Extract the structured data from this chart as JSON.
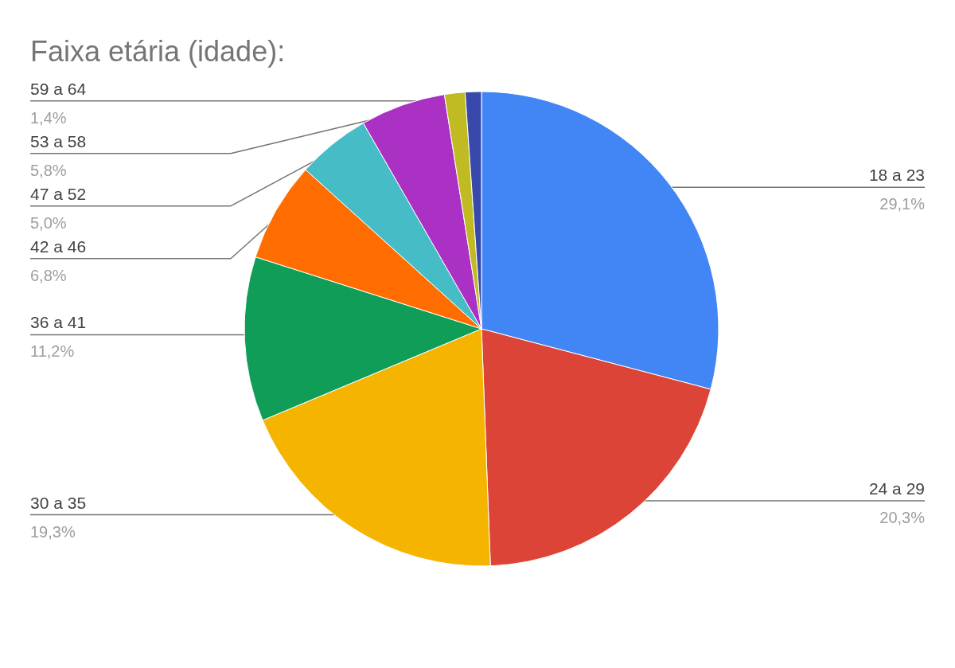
{
  "chart_data": {
    "type": "pie",
    "title": "Faixa etária (idade):",
    "categories": [
      "18 a 23",
      "24 a 29",
      "30 a 35",
      "36 a 41",
      "42 a 46",
      "47 a 52",
      "53 a 58",
      "59 a 64",
      null
    ],
    "values": [
      29.1,
      20.3,
      19.3,
      11.2,
      6.8,
      5.0,
      5.8,
      1.4,
      1.1
    ],
    "colors": [
      "#4285f4",
      "#db4437",
      "#f4b400",
      "#0f9d58",
      "#ff6d00",
      "#46bdc6",
      "#ab30c4",
      "#c0bb22",
      "#3949ab"
    ],
    "value_labels": [
      "29,1%",
      "20,3%",
      "19,3%",
      "11,2%",
      "6,8%",
      "5,0%",
      "5,8%",
      "1,4%",
      null
    ]
  }
}
